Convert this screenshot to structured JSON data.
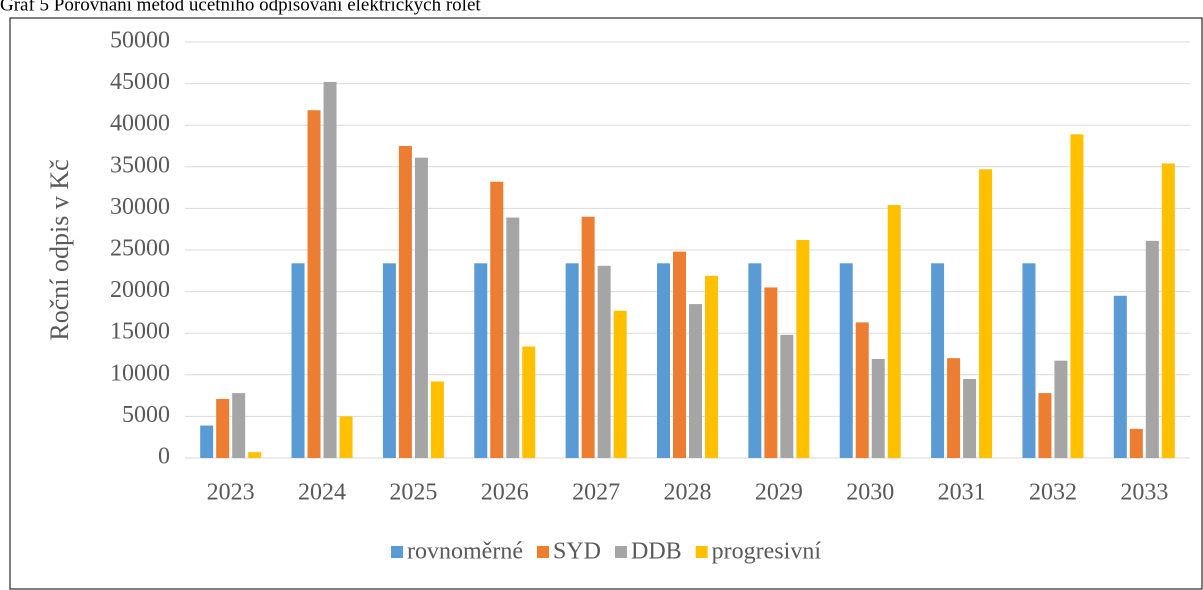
{
  "chart_data": {
    "type": "bar",
    "title": "Graf 5 Porovnání metod účetního odpisování elektrických rolet",
    "y_label": "Roční odpis v Kč",
    "categories": [
      "2023",
      "2024",
      "2025",
      "2026",
      "2027",
      "2028",
      "2029",
      "2030",
      "2031",
      "2032",
      "2033"
    ],
    "series": [
      {
        "name": "rovnoměrné",
        "color": "#5b9bd5",
        "values": [
          3900,
          23400,
          23400,
          23400,
          23400,
          23400,
          23400,
          23400,
          23400,
          23400,
          19500
        ]
      },
      {
        "name": "SYD",
        "color": "#ed7d31",
        "values": [
          7100,
          41800,
          37500,
          33200,
          29000,
          24800,
          20500,
          16300,
          12000,
          7800,
          3500
        ]
      },
      {
        "name": "DDB",
        "color": "#a5a5a5",
        "values": [
          7800,
          45200,
          36100,
          28900,
          23100,
          18500,
          14800,
          11900,
          9500,
          11700,
          26100
        ]
      },
      {
        "name": "progresivní",
        "color": "#ffc000",
        "values": [
          700,
          5000,
          9200,
          13400,
          17700,
          21900,
          26200,
          30400,
          34700,
          38900,
          35400
        ]
      }
    ],
    "ylim": [
      0,
      50000
    ],
    "yticks": [
      0,
      5000,
      10000,
      15000,
      20000,
      25000,
      30000,
      35000,
      40000,
      45000,
      50000
    ],
    "grid": true,
    "legend": "bottom"
  }
}
